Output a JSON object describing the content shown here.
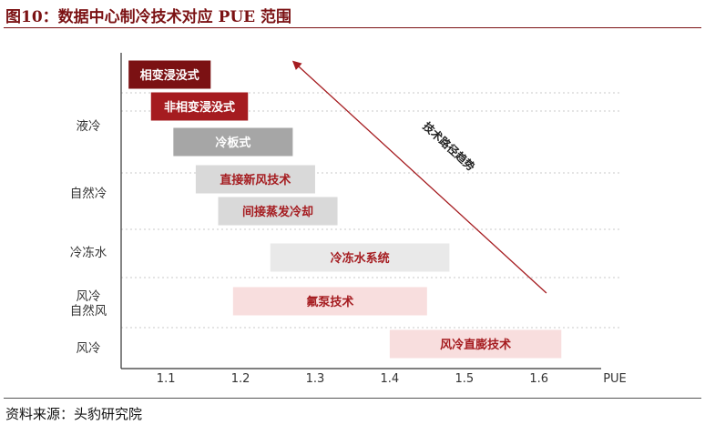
{
  "figure": {
    "title": "图10：数据中心制冷技术对应 PUE 范围",
    "source": "资料来源：头豹研究院"
  },
  "chart_data": {
    "type": "bar",
    "orientation": "horizontal-range",
    "xlabel": "PUE",
    "xlim": [
      1.04,
      1.72
    ],
    "xticks": [
      1.1,
      1.2,
      1.3,
      1.4,
      1.5,
      1.6
    ],
    "grid": true,
    "categories": [
      "液冷",
      "自然冷",
      "冷冻水",
      "风冷\n自然风",
      "风冷"
    ],
    "bars": [
      {
        "label": "相变浸没式",
        "group": "液冷",
        "start": 1.05,
        "end": 1.16,
        "color": "#7b1113",
        "text_color": "#ffffff"
      },
      {
        "label": "非相变浸没式",
        "group": "液冷",
        "start": 1.08,
        "end": 1.21,
        "color": "#a51c20",
        "text_color": "#ffffff"
      },
      {
        "label": "冷板式",
        "group": "液冷",
        "start": 1.11,
        "end": 1.27,
        "color": "#a6a6a6",
        "text_color": "#ffffff"
      },
      {
        "label": "直接新风技术",
        "group": "自然冷",
        "start": 1.14,
        "end": 1.3,
        "color": "#d9d9d9",
        "text_color": "#a51c20"
      },
      {
        "label": "间接蒸发冷却",
        "group": "自然冷",
        "start": 1.17,
        "end": 1.33,
        "color": "#d9d9d9",
        "text_color": "#a51c20"
      },
      {
        "label": "冷冻水系统",
        "group": "冷冻水",
        "start": 1.24,
        "end": 1.48,
        "color": "#e9e9e9",
        "text_color": "#a51c20"
      },
      {
        "label": "氟泵技术",
        "group": "风冷\n自然风",
        "start": 1.19,
        "end": 1.45,
        "color": "#f8dede",
        "text_color": "#a51c20"
      },
      {
        "label": "风冷直膨技术",
        "group": "风冷",
        "start": 1.4,
        "end": 1.63,
        "color": "#f8dede",
        "text_color": "#a51c20"
      }
    ],
    "annotation": {
      "text": "技术路径趋势",
      "arrow_from": [
        1.61,
        "风冷\n自然风"
      ],
      "arrow_to": [
        1.27,
        "液冷"
      ],
      "color": "#a51c20"
    }
  }
}
